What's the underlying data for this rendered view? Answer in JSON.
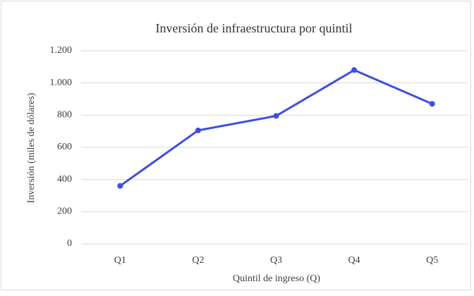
{
  "chart_data": {
    "type": "line",
    "title": "Inversión de infraestructura por quintil",
    "xlabel": "Quintil de ingreso (Q)",
    "ylabel": "Inversión (miles de dólares)",
    "categories": [
      "Q1",
      "Q2",
      "Q3",
      "Q4",
      "Q5"
    ],
    "series": [
      {
        "name": "Inversión",
        "color": "#3d4fe6",
        "values": [
          360,
          705,
          795,
          1080,
          870
        ]
      }
    ],
    "ylim": [
      0,
      1200
    ],
    "yticks": [
      0,
      200,
      400,
      600,
      800,
      {
        "value": 1000,
        "label": "1.000"
      },
      {
        "value": 1200,
        "label": "1.200"
      }
    ],
    "grid": true
  }
}
